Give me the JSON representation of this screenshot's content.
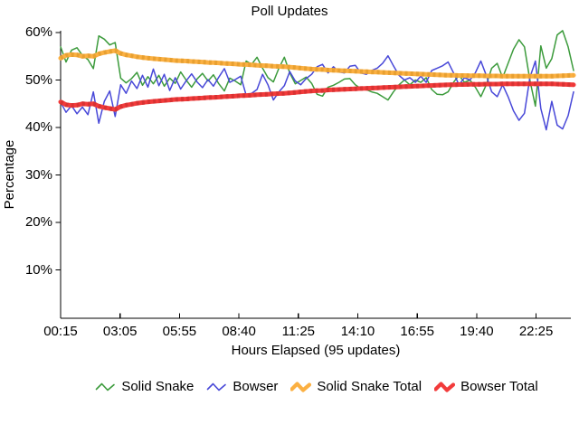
{
  "chart_data": {
    "type": "line",
    "title": "Poll Updates",
    "xlabel": "Hours Elapsed (95 updates)",
    "ylabel": "Percentage",
    "x_tick_labels": [
      "00:15",
      "03:05",
      "05:55",
      "08:40",
      "11:25",
      "14:10",
      "16:55",
      "19:40",
      "22:25"
    ],
    "y_ticks": [
      10,
      20,
      30,
      40,
      50,
      60
    ],
    "y_tick_labels": [
      "10%",
      "20%",
      "30%",
      "40%",
      "50%",
      "60%"
    ],
    "ylim": [
      0,
      61
    ],
    "n_points": 95,
    "grid": false,
    "legend_position": "bottom",
    "axis_color": "#000000",
    "series": [
      {
        "name": "Solid Snake",
        "color": "#3c9b3c",
        "width": 1.5,
        "values": [
          57.0,
          53.8,
          56.3,
          56.8,
          55.2,
          54.3,
          52.4,
          59.3,
          58.6,
          57.4,
          57.9,
          50.4,
          49.4,
          50.3,
          51.6,
          48.9,
          50.7,
          49.2,
          51.0,
          48.7,
          50.4,
          49.3,
          51.7,
          50.0,
          48.5,
          50.2,
          51.4,
          49.8,
          51.1,
          49.2,
          47.7,
          50.4,
          49.8,
          49.0,
          54.0,
          53.3,
          54.8,
          52.5,
          50.5,
          49.6,
          52.5,
          54.8,
          51.5,
          49.2,
          49.9,
          50.6,
          49.3,
          47.0,
          46.6,
          48.5,
          48.9,
          49.5,
          50.2,
          50.3,
          49.0,
          48.2,
          48.0,
          47.5,
          47.2,
          46.5,
          45.8,
          47.5,
          49.0,
          50.0,
          49.0,
          50.0,
          49.5,
          50.5,
          48.0,
          47.0,
          46.9,
          47.5,
          49.5,
          51.0,
          49.5,
          50.0,
          48.5,
          46.5,
          49.0,
          52.5,
          53.5,
          50.5,
          53.5,
          56.5,
          58.5,
          57.0,
          50.0,
          44.5,
          57.2,
          52.5,
          54.5,
          59.5,
          60.4,
          57.0,
          52.0
        ]
      },
      {
        "name": "Bowser",
        "color": "#4848d8",
        "width": 1.5,
        "values": [
          45.3,
          43.2,
          44.6,
          42.9,
          44.3,
          42.7,
          47.5,
          40.9,
          45.5,
          47.7,
          42.3,
          49.0,
          47.2,
          49.8,
          48.2,
          51.0,
          48.5,
          52.3,
          48.8,
          51.2,
          47.8,
          50.5,
          48.1,
          49.8,
          51.3,
          49.6,
          48.4,
          50.1,
          48.7,
          50.6,
          52.4,
          49.5,
          50.1,
          50.8,
          46.8,
          47.2,
          48.0,
          51.2,
          49.0,
          45.8,
          47.5,
          48.8,
          51.8,
          49.8,
          49.0,
          50.3,
          51.2,
          52.8,
          53.3,
          51.5,
          52.8,
          51.7,
          51.5,
          52.9,
          53.1,
          51.5,
          51.2,
          52.0,
          52.5,
          53.5,
          55.1,
          53.0,
          51.0,
          50.0,
          50.5,
          49.5,
          50.8,
          49.5,
          52.0,
          52.5,
          53.0,
          53.8,
          51.5,
          49.0,
          50.5,
          50.0,
          51.5,
          54.0,
          51.0,
          47.5,
          46.5,
          49.0,
          46.5,
          43.5,
          41.5,
          43.0,
          50.5,
          54.0,
          44.0,
          39.5,
          45.5,
          40.5,
          39.7,
          42.5,
          47.5
        ]
      },
      {
        "name": "Solid Snake Total",
        "color": "#fbb042",
        "overlay": "#e8a030",
        "width": 5,
        "values": [
          54.6,
          55.2,
          55.35,
          55.3,
          55.0,
          55.1,
          55.0,
          55.5,
          55.8,
          56.0,
          56.2,
          55.6,
          55.3,
          55.1,
          54.9,
          54.75,
          54.6,
          54.5,
          54.4,
          54.3,
          54.2,
          54.1,
          54.05,
          54.0,
          53.9,
          53.85,
          53.8,
          53.7,
          53.65,
          53.6,
          53.5,
          53.45,
          53.4,
          53.3,
          53.25,
          53.2,
          53.1,
          53.05,
          53.0,
          52.9,
          52.85,
          52.8,
          52.7,
          52.6,
          52.5,
          52.4,
          52.3,
          52.25,
          52.2,
          52.1,
          52.05,
          52.0,
          51.95,
          51.9,
          51.85,
          51.8,
          51.75,
          51.7,
          51.65,
          51.6,
          51.55,
          51.5,
          51.45,
          51.4,
          51.35,
          51.3,
          51.25,
          51.2,
          51.15,
          51.1,
          51.05,
          51.0,
          51.0,
          50.95,
          50.95,
          50.9,
          50.9,
          50.9,
          50.85,
          50.85,
          50.85,
          50.8,
          50.8,
          50.8,
          50.8,
          50.8,
          50.8,
          50.8,
          50.8,
          50.8,
          50.8,
          50.85,
          50.9,
          50.95,
          51.0
        ]
      },
      {
        "name": "Bowser Total",
        "color": "#f23b3b",
        "overlay": "#d93232",
        "width": 5,
        "values": [
          45.4,
          44.8,
          44.65,
          44.7,
          45.0,
          44.9,
          45.0,
          44.5,
          44.2,
          44.0,
          43.8,
          44.4,
          44.7,
          44.9,
          45.1,
          45.25,
          45.4,
          45.5,
          45.6,
          45.7,
          45.8,
          45.9,
          45.95,
          46.0,
          46.1,
          46.15,
          46.2,
          46.3,
          46.35,
          46.4,
          46.5,
          46.55,
          46.6,
          46.7,
          46.75,
          46.8,
          46.9,
          46.95,
          47.0,
          47.1,
          47.15,
          47.2,
          47.3,
          47.4,
          47.5,
          47.6,
          47.7,
          47.75,
          47.8,
          47.9,
          47.95,
          48.0,
          48.05,
          48.1,
          48.15,
          48.2,
          48.25,
          48.3,
          48.35,
          48.4,
          48.45,
          48.5,
          48.55,
          48.6,
          48.65,
          48.7,
          48.75,
          48.8,
          48.85,
          48.9,
          48.95,
          49.0,
          49.0,
          49.05,
          49.05,
          49.1,
          49.1,
          49.1,
          49.15,
          49.15,
          49.15,
          49.2,
          49.2,
          49.2,
          49.2,
          49.2,
          49.2,
          49.2,
          49.2,
          49.2,
          49.2,
          49.15,
          49.1,
          49.05,
          49.0
        ]
      }
    ]
  }
}
